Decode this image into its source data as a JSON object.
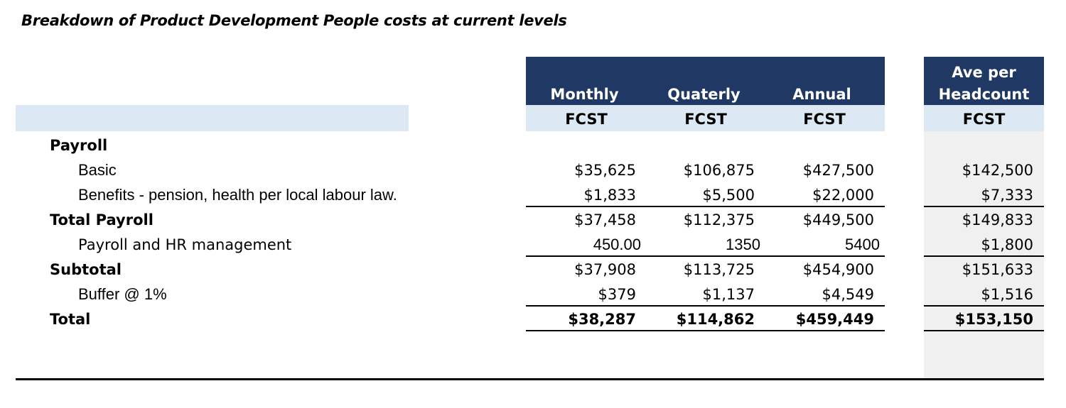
{
  "title": "Breakdown of Product Development People costs at current levels",
  "columns": {
    "monthly": "Monthly",
    "quarterly": "Quaterly",
    "annual": "Annual",
    "ave_line1": "Ave per",
    "ave_line2": "Headcount",
    "sub": "FCST"
  },
  "rows": [
    {
      "label": "Payroll",
      "monthly": "",
      "quarterly": "",
      "annual": "",
      "ave": ""
    },
    {
      "label": "Basic",
      "monthly": "$35,625",
      "quarterly": "$106,875",
      "annual": "$427,500",
      "ave": "$142,500"
    },
    {
      "label": "Benefits - pension, health per local labour law.",
      "monthly": "$1,833",
      "quarterly": "$5,500",
      "annual": "$22,000",
      "ave": "$7,333"
    },
    {
      "label": "Total Payroll",
      "monthly": "$37,458",
      "quarterly": "$112,375",
      "annual": "$449,500",
      "ave": "$149,833"
    },
    {
      "label": "Payroll and HR management",
      "monthly": "450.00",
      "quarterly": "1350",
      "annual": "5400",
      "ave": "$1,800"
    },
    {
      "label": "Subtotal",
      "monthly": "$37,908",
      "quarterly": "$113,725",
      "annual": "$454,900",
      "ave": "$151,633"
    },
    {
      "label": "Buffer @ 1%",
      "monthly": "$379",
      "quarterly": "$1,137",
      "annual": "$4,549",
      "ave": "$1,516"
    },
    {
      "label": "Total",
      "monthly": "$38,287",
      "quarterly": "$114,862",
      "annual": "$459,449",
      "ave": "$153,150"
    }
  ]
}
